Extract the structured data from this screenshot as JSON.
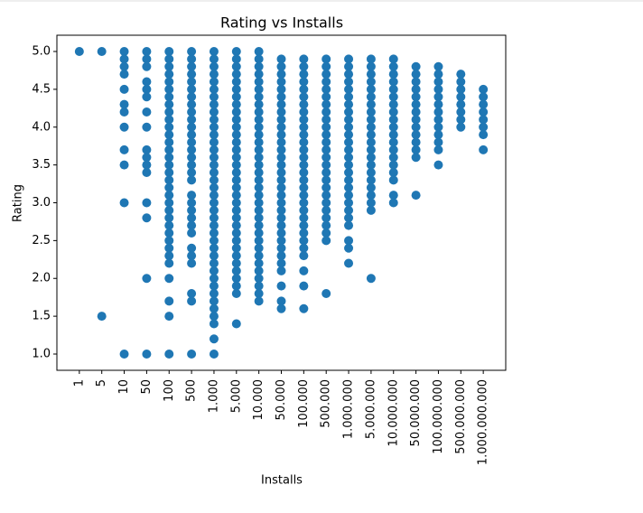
{
  "chart_data": {
    "type": "scatter",
    "title": "Rating vs Installs",
    "x_label": "Installs",
    "y_label": "Rating",
    "color": "#1f77b4",
    "categories": [
      "1",
      "5",
      "10",
      "50",
      "100",
      "500",
      "1.000",
      "5.000",
      "10.000",
      "50.000",
      "100.000",
      "500.000",
      "1.000.000",
      "5.000.000",
      "10.000.000",
      "50.000.000",
      "100.000.000",
      "500.000.000",
      "1.000.000.000"
    ],
    "values": [
      [
        5
      ],
      [
        5,
        1.5
      ],
      [
        5,
        4.9,
        4.8,
        4.7,
        4.5,
        4.3,
        4.2,
        4,
        3.7,
        3.5,
        3,
        1
      ],
      [
        5,
        4.9,
        4.8,
        4.6,
        4.5,
        4.4,
        4.2,
        4,
        3.7,
        3.6,
        3.5,
        3.4,
        3,
        2.8,
        2,
        1
      ],
      [
        5,
        4.9,
        4.8,
        4.7,
        4.6,
        4.5,
        4.4,
        4.3,
        4.2,
        4.1,
        4,
        3.9,
        3.8,
        3.7,
        3.6,
        3.5,
        3.4,
        3.3,
        3.2,
        3.1,
        3,
        2.9,
        2.8,
        2.7,
        2.6,
        2.5,
        2.4,
        2.3,
        2.2,
        2,
        1.7,
        1.5,
        1
      ],
      [
        5,
        4.9,
        4.8,
        4.7,
        4.6,
        4.5,
        4.4,
        4.3,
        4.2,
        4.1,
        4,
        3.9,
        3.8,
        3.7,
        3.6,
        3.5,
        3.4,
        3.3,
        3.1,
        3,
        2.9,
        2.8,
        2.7,
        2.6,
        2.4,
        2.3,
        2.2,
        1.8,
        1.7,
        1
      ],
      [
        5,
        4.9,
        4.8,
        4.7,
        4.6,
        4.5,
        4.4,
        4.3,
        4.2,
        4.1,
        4,
        3.9,
        3.8,
        3.7,
        3.6,
        3.5,
        3.4,
        3.3,
        3.2,
        3.1,
        3,
        2.9,
        2.8,
        2.7,
        2.6,
        2.5,
        2.4,
        2.3,
        2.2,
        2.1,
        2,
        1.9,
        1.8,
        1.7,
        1.6,
        1.5,
        1.4,
        1.2,
        1
      ],
      [
        5,
        4.9,
        4.8,
        4.7,
        4.6,
        4.5,
        4.4,
        4.3,
        4.2,
        4.1,
        4,
        3.9,
        3.8,
        3.7,
        3.6,
        3.5,
        3.4,
        3.3,
        3.2,
        3.1,
        3,
        2.9,
        2.8,
        2.7,
        2.6,
        2.5,
        2.4,
        2.3,
        2.2,
        2.1,
        2,
        1.9,
        1.8,
        1.4
      ],
      [
        5,
        4.9,
        4.8,
        4.7,
        4.6,
        4.5,
        4.4,
        4.3,
        4.2,
        4.1,
        4,
        3.9,
        3.8,
        3.7,
        3.6,
        3.5,
        3.4,
        3.3,
        3.2,
        3.1,
        3,
        2.9,
        2.8,
        2.7,
        2.6,
        2.5,
        2.4,
        2.3,
        2.2,
        2.1,
        2,
        1.9,
        1.8,
        1.7
      ],
      [
        4.9,
        4.8,
        4.7,
        4.6,
        4.5,
        4.4,
        4.3,
        4.2,
        4.1,
        4,
        3.9,
        3.8,
        3.7,
        3.6,
        3.5,
        3.4,
        3.3,
        3.2,
        3.1,
        3,
        2.9,
        2.8,
        2.7,
        2.6,
        2.5,
        2.4,
        2.3,
        2.2,
        2.1,
        1.9,
        1.7,
        1.6
      ],
      [
        4.9,
        4.8,
        4.7,
        4.6,
        4.5,
        4.4,
        4.3,
        4.2,
        4.1,
        4,
        3.9,
        3.8,
        3.7,
        3.6,
        3.5,
        3.4,
        3.3,
        3.2,
        3.1,
        3,
        2.9,
        2.8,
        2.7,
        2.6,
        2.5,
        2.4,
        2.3,
        2.1,
        1.9,
        1.6
      ],
      [
        4.9,
        4.8,
        4.7,
        4.6,
        4.5,
        4.4,
        4.3,
        4.2,
        4.1,
        4,
        3.9,
        3.8,
        3.7,
        3.6,
        3.5,
        3.4,
        3.3,
        3.2,
        3.1,
        3,
        2.9,
        2.8,
        2.7,
        2.6,
        2.5,
        1.8
      ],
      [
        4.9,
        4.8,
        4.7,
        4.6,
        4.5,
        4.4,
        4.3,
        4.2,
        4.1,
        4,
        3.9,
        3.8,
        3.7,
        3.6,
        3.5,
        3.4,
        3.3,
        3.2,
        3.1,
        3,
        2.9,
        2.8,
        2.7,
        2.5,
        2.4,
        2.2
      ],
      [
        4.9,
        4.8,
        4.7,
        4.6,
        4.5,
        4.4,
        4.3,
        4.2,
        4.1,
        4,
        3.9,
        3.8,
        3.7,
        3.6,
        3.5,
        3.4,
        3.3,
        3.2,
        3.1,
        3,
        2.9,
        2
      ],
      [
        4.9,
        4.8,
        4.7,
        4.6,
        4.5,
        4.4,
        4.3,
        4.2,
        4.1,
        4,
        3.9,
        3.8,
        3.7,
        3.6,
        3.5,
        3.4,
        3.3,
        3.1,
        3
      ],
      [
        4.8,
        4.7,
        4.6,
        4.5,
        4.4,
        4.3,
        4.2,
        4.1,
        4,
        3.9,
        3.8,
        3.7,
        3.6,
        3.1
      ],
      [
        4.8,
        4.7,
        4.6,
        4.5,
        4.4,
        4.3,
        4.2,
        4.1,
        4,
        3.9,
        3.8,
        3.7,
        3.5
      ],
      [
        4.7,
        4.6,
        4.5,
        4.4,
        4.3,
        4.2,
        4.1,
        4
      ],
      [
        4.5,
        4.4,
        4.3,
        4.2,
        4.1,
        4,
        3.9,
        3.7
      ]
    ],
    "ylim": [
      0.785,
      5.215
    ],
    "yticks": [
      {
        "value": 1,
        "label": "1.0"
      },
      {
        "value": 1.5,
        "label": "1.5"
      },
      {
        "value": 2,
        "label": "2.0"
      },
      {
        "value": 2.5,
        "label": "2.5"
      },
      {
        "value": 3,
        "label": "3.0"
      },
      {
        "value": 3.5,
        "label": "3.5"
      },
      {
        "value": 4,
        "label": "4.0"
      },
      {
        "value": 4.5,
        "label": "4.5"
      },
      {
        "value": 5,
        "label": "5.0"
      }
    ],
    "grid": false
  }
}
